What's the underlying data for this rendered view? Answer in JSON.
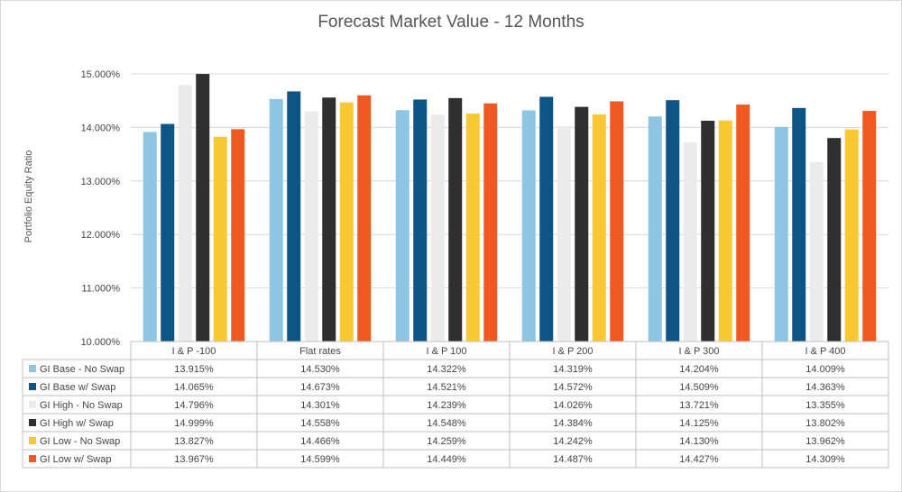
{
  "chart_data": {
    "type": "bar",
    "title": "Forecast Market Value - 12 Months",
    "xlabel": "",
    "ylabel": "Portfolio Equity Ratio",
    "ylim": [
      10.0,
      15.0
    ],
    "yticks": [
      "10.000%",
      "11.000%",
      "12.000%",
      "13.000%",
      "14.000%",
      "15.000%"
    ],
    "grid": true,
    "legend_placement": "data-table",
    "categories": [
      "I & P -100",
      "Flat rates",
      "I & P 100",
      "I & P 200",
      "I & P 300",
      "I & P 400"
    ],
    "series": [
      {
        "name": "GI Base - No Swap",
        "color": "#8EC5E3",
        "values": [
          13.915,
          14.53,
          14.322,
          14.319,
          14.204,
          14.009
        ],
        "labels": [
          "13.915%",
          "14.530%",
          "14.322%",
          "14.319%",
          "14.204%",
          "14.009%"
        ]
      },
      {
        "name": "GI Base w/ Swap",
        "color": "#0E5484",
        "values": [
          14.065,
          14.673,
          14.521,
          14.572,
          14.509,
          14.363
        ],
        "labels": [
          "14.065%",
          "14.673%",
          "14.521%",
          "14.572%",
          "14.509%",
          "14.363%"
        ]
      },
      {
        "name": "GI High - No Swap",
        "color": "#EBEBEB",
        "values": [
          14.796,
          14.301,
          14.239,
          14.026,
          13.721,
          13.355
        ],
        "labels": [
          "14.796%",
          "14.301%",
          "14.239%",
          "14.026%",
          "13.721%",
          "13.355%"
        ]
      },
      {
        "name": "GI High w/ Swap",
        "color": "#2F2F2F",
        "values": [
          14.999,
          14.558,
          14.548,
          14.384,
          14.125,
          13.802
        ],
        "labels": [
          "14.999%",
          "14.558%",
          "14.548%",
          "14.384%",
          "14.125%",
          "13.802%"
        ]
      },
      {
        "name": "GI Low - No Swap",
        "color": "#F9C934",
        "values": [
          13.827,
          14.466,
          14.259,
          14.242,
          14.13,
          13.962
        ],
        "labels": [
          "13.827%",
          "14.466%",
          "14.259%",
          "14.242%",
          "14.130%",
          "13.962%"
        ]
      },
      {
        "name": "GI Low w/ Swap",
        "color": "#F05A22",
        "values": [
          13.967,
          14.599,
          14.449,
          14.487,
          14.427,
          14.309
        ],
        "labels": [
          "13.967%",
          "14.599%",
          "14.449%",
          "14.487%",
          "14.427%",
          "14.309%"
        ]
      }
    ]
  }
}
